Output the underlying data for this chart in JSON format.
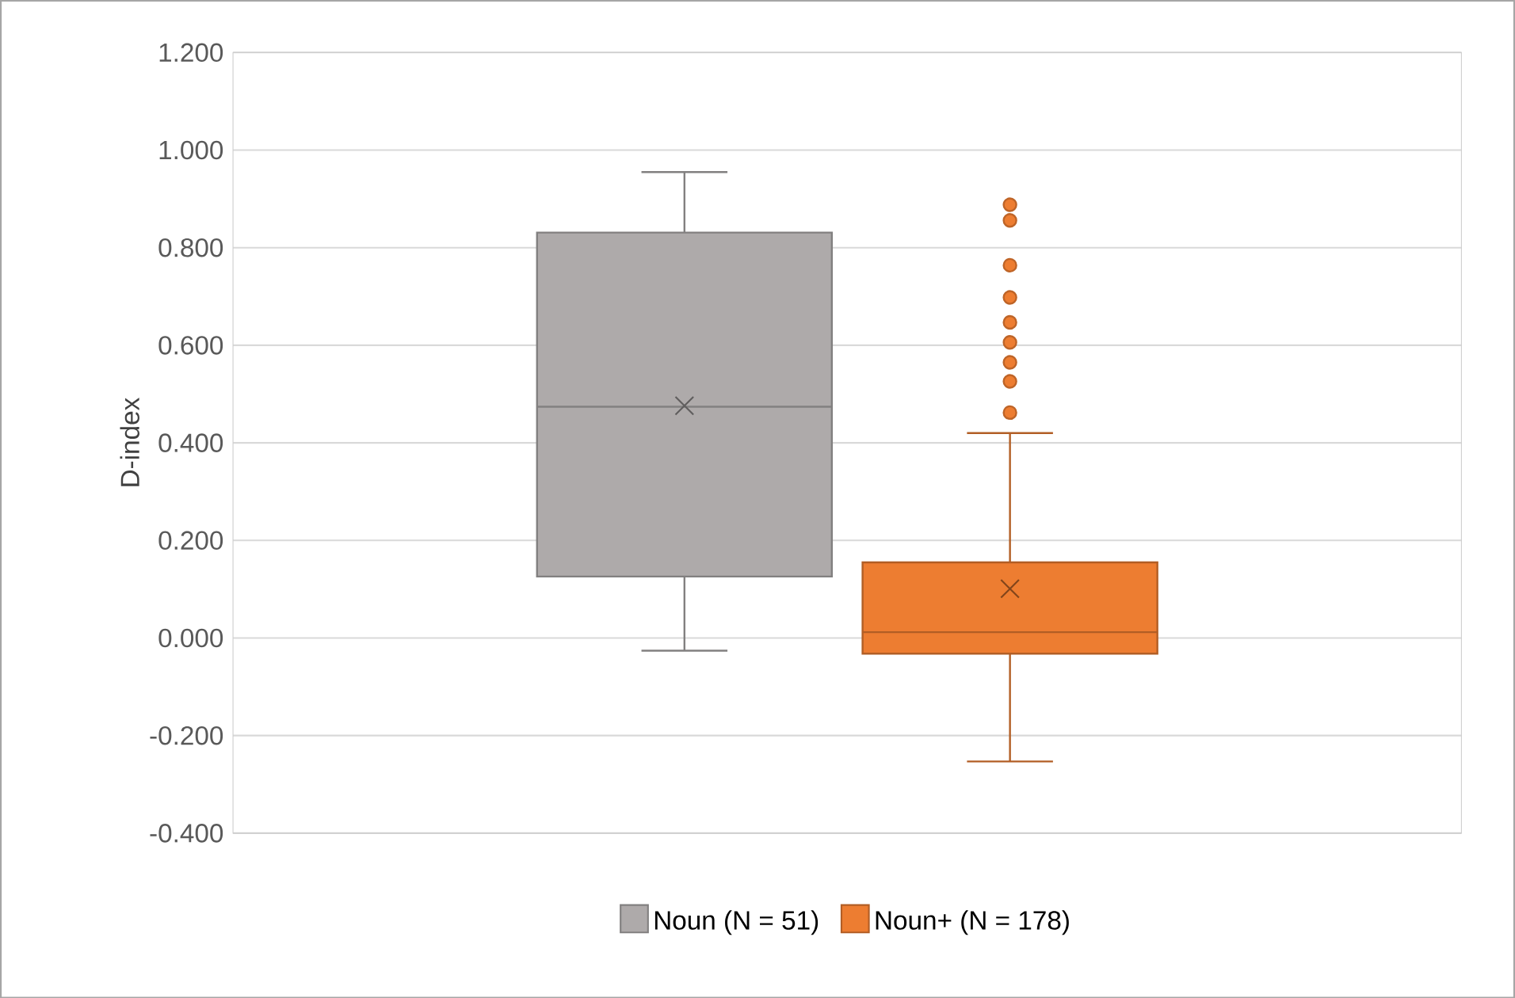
{
  "chart_data": {
    "type": "box",
    "ylabel": "D-index",
    "categories": [
      null
    ],
    "ylim": [
      -0.4,
      1.2
    ],
    "yticks": [
      {
        "value": -0.4,
        "label": "-0.400"
      },
      {
        "value": -0.2,
        "label": "-0.200"
      },
      {
        "value": 0,
        "label": "0.000"
      },
      {
        "value": 0.2,
        "label": "0.200"
      },
      {
        "value": 0.4,
        "label": "0.400"
      },
      {
        "value": 0.6,
        "label": "0.600"
      },
      {
        "value": 0.8,
        "label": "0.800"
      },
      {
        "value": 1.0,
        "label": "1.000"
      },
      {
        "value": 1.2,
        "label": "1.200"
      }
    ],
    "grid": "y",
    "legend": "bottom",
    "marker": "circle",
    "series": [
      {
        "name": "Noun (N = 51)",
        "color": "#aeaaaa",
        "boxes": [
          {
            "low": -0.026,
            "q1": 0.126,
            "median": 0.474,
            "q3": 0.831,
            "high": 0.955,
            "mean": 0.476
          }
        ]
      },
      {
        "name": "Noun+ (N = 178)",
        "color": "#ed7d31",
        "boxes": [
          {
            "low": -0.253,
            "q1": -0.032,
            "median": 0.012,
            "q3": 0.155,
            "high": 0.42,
            "mean": 0.101,
            "outliers": [
              0.888,
              0.856,
              0.764,
              0.698,
              0.647,
              0.606,
              0.565,
              0.526,
              0.462
            ]
          }
        ]
      }
    ]
  }
}
